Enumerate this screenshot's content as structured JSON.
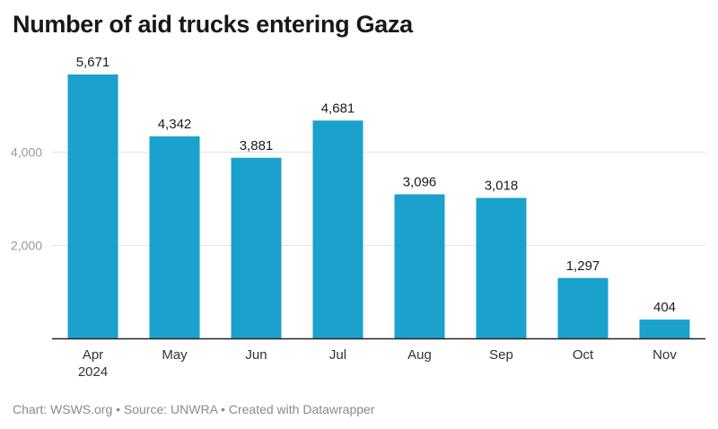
{
  "chart_data": {
    "type": "bar",
    "title": "Number of aid trucks entering Gaza",
    "categories": [
      "Apr",
      "May",
      "Jun",
      "Jul",
      "Aug",
      "Sep",
      "Oct",
      "Nov"
    ],
    "category_sublabels": [
      "2024",
      "",
      "",
      "",
      "",
      "",
      "",
      ""
    ],
    "values": [
      5671,
      4342,
      3881,
      4681,
      3096,
      3018,
      1297,
      404
    ],
    "value_labels": [
      "5,671",
      "4,342",
      "3,881",
      "4,681",
      "3,096",
      "3,018",
      "1,297",
      "404"
    ],
    "yticks": [
      2000,
      4000
    ],
    "ytick_labels": [
      "2,000",
      "4,000"
    ],
    "ylim": [
      0,
      5671
    ],
    "grid": true,
    "bar_color": "#1aa1cc",
    "footer": "Chart: WSWS.org • Source: UNWRA • Created with Datawrapper"
  }
}
